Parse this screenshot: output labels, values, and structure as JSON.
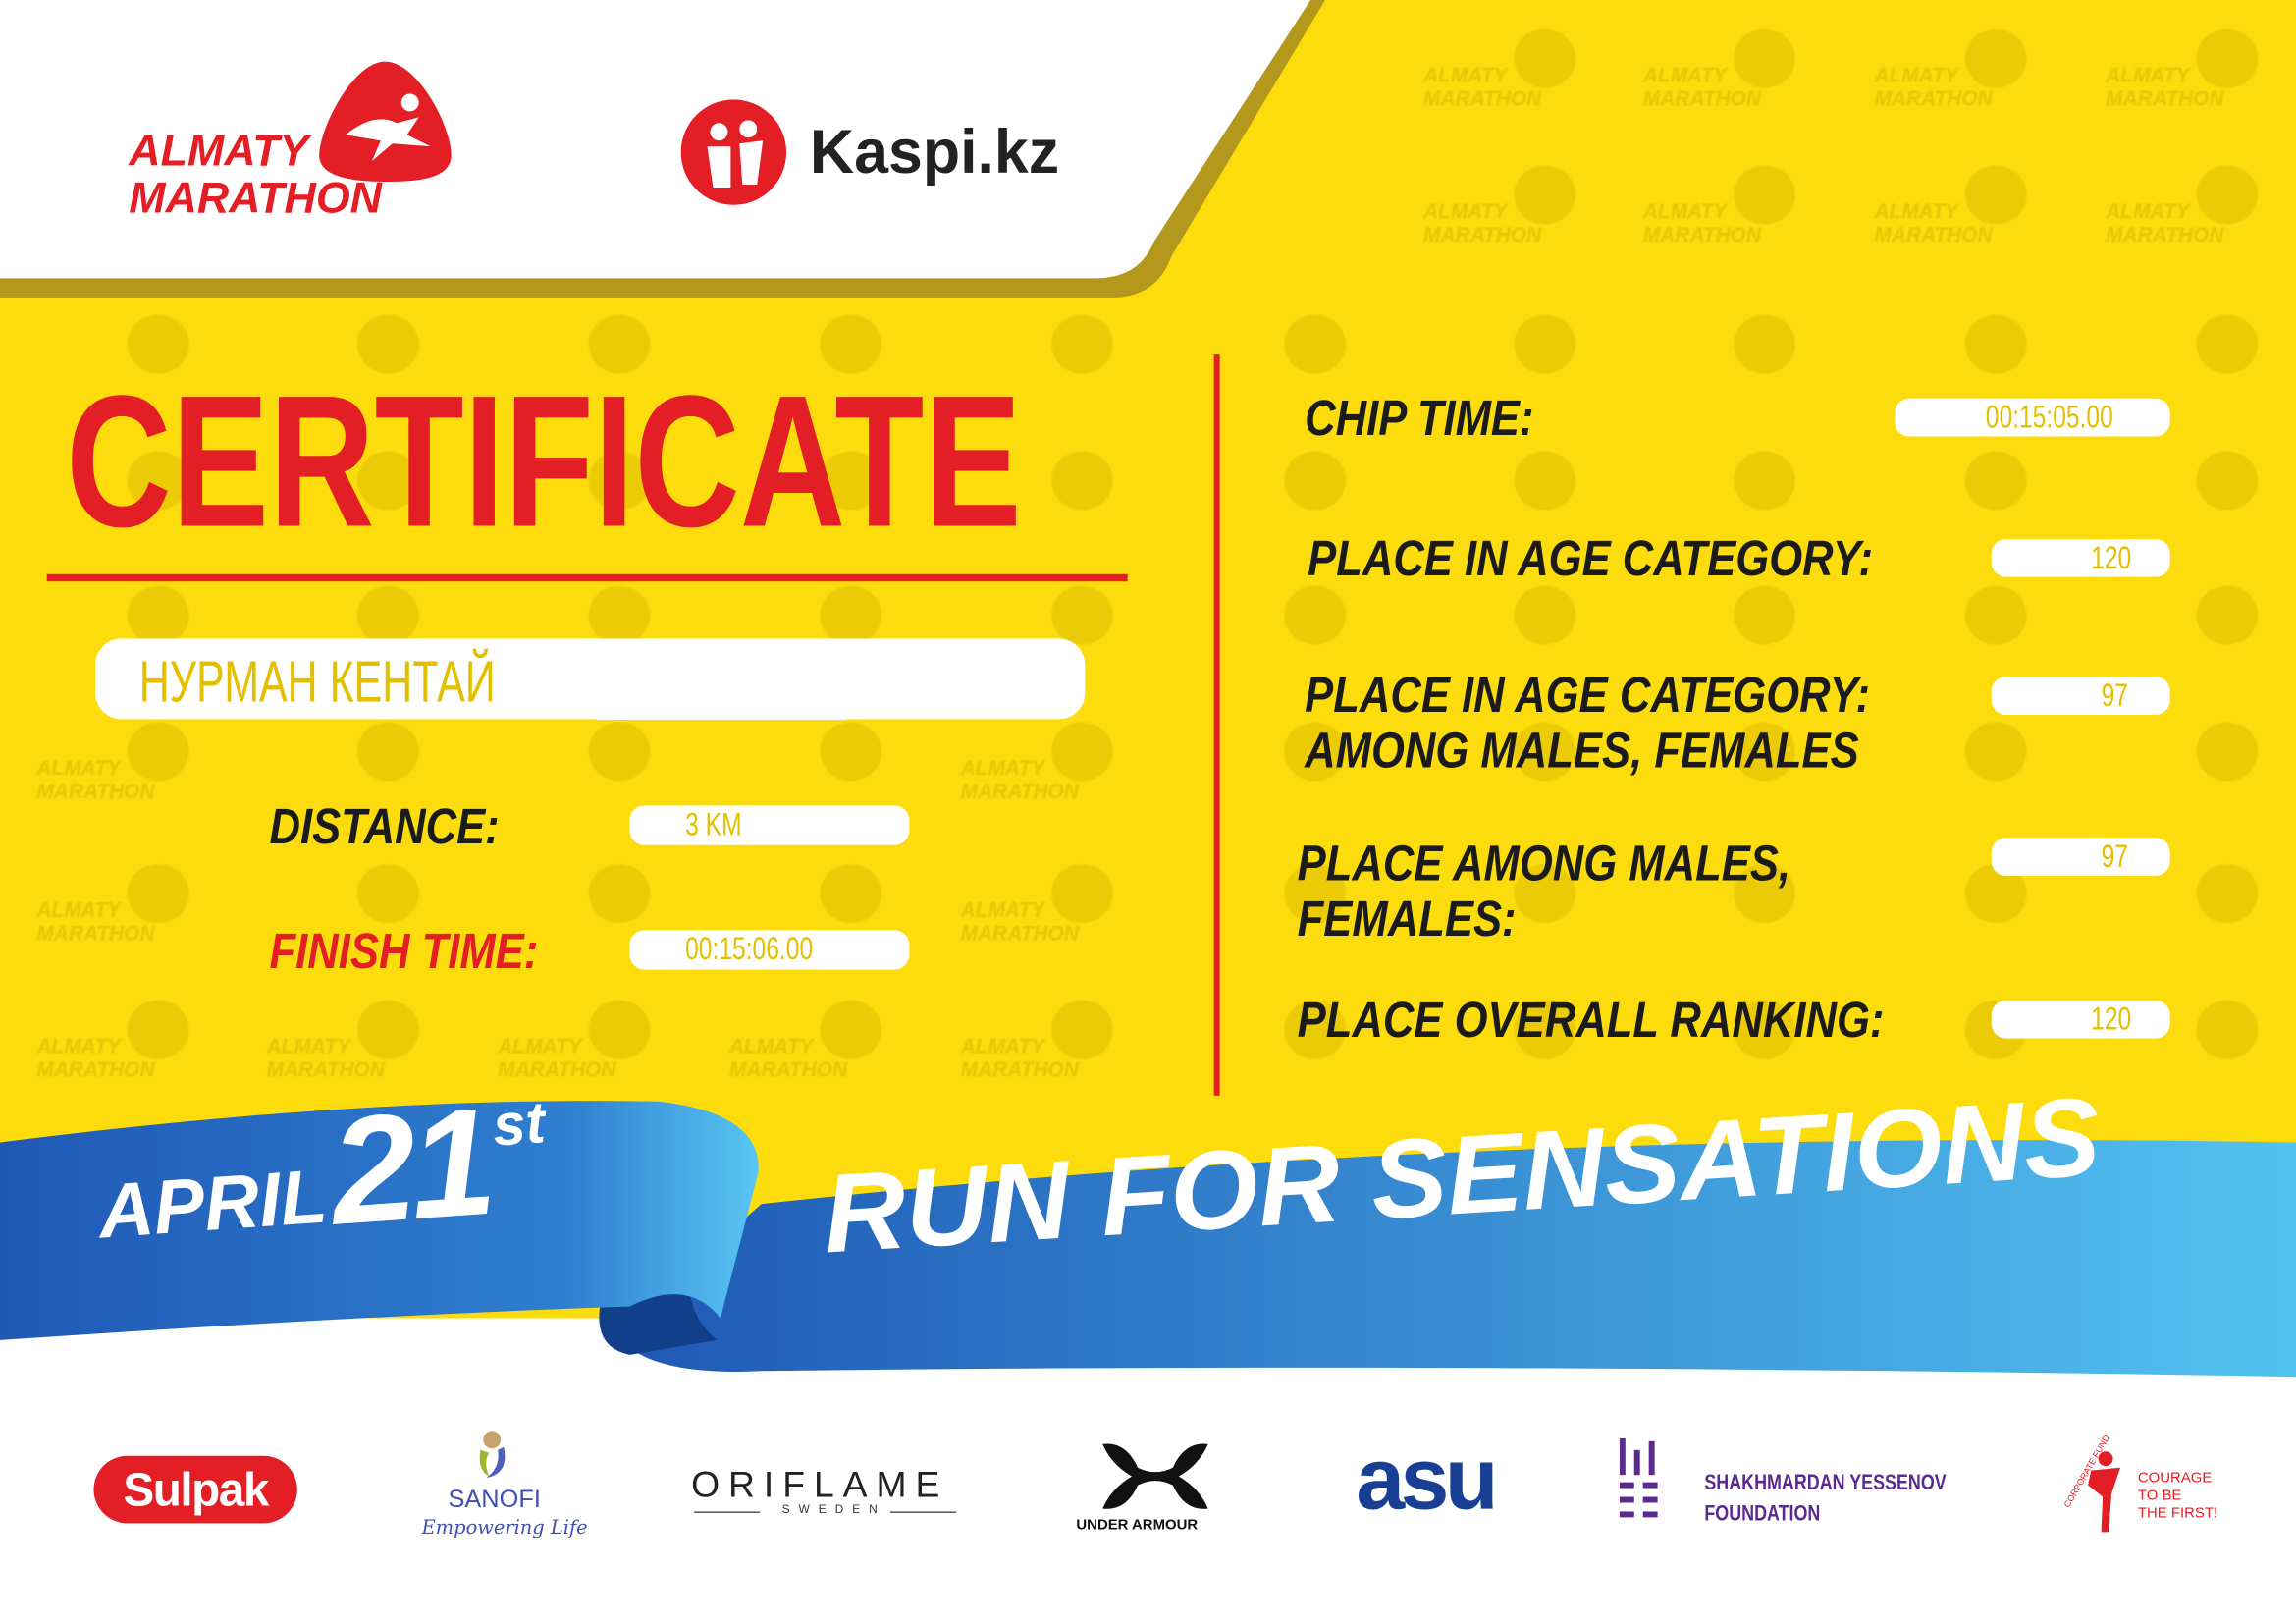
{
  "header": {
    "event_logo_text": [
      "ALMATY",
      "MARATHON"
    ],
    "sponsor_name": "Kaspi.kz"
  },
  "watermark_text": [
    "ALMATY",
    "MARATHON"
  ],
  "certificate": {
    "title": "CERTIFICATE",
    "participant_name": "НУРМАН КЕНТАЙ",
    "distance_label": "DISTANCE:",
    "distance_value": "3 KM",
    "finish_time_label": "FINISH TIME:",
    "finish_time_value": "00:15:06.00"
  },
  "results": {
    "chip_time_label": "CHIP TIME:",
    "chip_time_value": "00:15:05.00",
    "age_place_label": "PLACE IN AGE CATEGORY:",
    "age_place_value": "120",
    "age_gender_place_label": [
      "PLACE IN AGE CATEGORY:",
      "AMONG MALES, FEMALES"
    ],
    "age_gender_place_value": "97",
    "gender_place_label": [
      "PLACE AMONG MALES,",
      "FEMALES:"
    ],
    "gender_place_value": "97",
    "overall_label": "PLACE OVERALL RANKING:",
    "overall_value": "120"
  },
  "banner": {
    "month": "APRIL",
    "day": "21",
    "suffix": "st",
    "slogan": "RUN FOR SENSATIONS"
  },
  "sponsors": {
    "sulpak": "Sulpak",
    "sanofi": "SANOFI",
    "sanofi_tagline": "Empowering Life",
    "oriflame": "ORIFLAME",
    "oriflame_sub": "SWEDEN",
    "under_armour": "UNDER ARMOUR",
    "asu": "asu",
    "yessenov": [
      "SHAKHMARDAN YESSENOV",
      "FOUNDATION"
    ],
    "courage": [
      "COURAGE",
      "TO BE",
      "THE FIRST!"
    ],
    "courage_arc": "CORPORATE FUND"
  },
  "colors": {
    "background": "#fcdc0c",
    "red": "#e31e24",
    "value_text": "#e2bf00",
    "ribbon_dark": "#1f58b5",
    "ribbon_light": "#52c2f0"
  }
}
